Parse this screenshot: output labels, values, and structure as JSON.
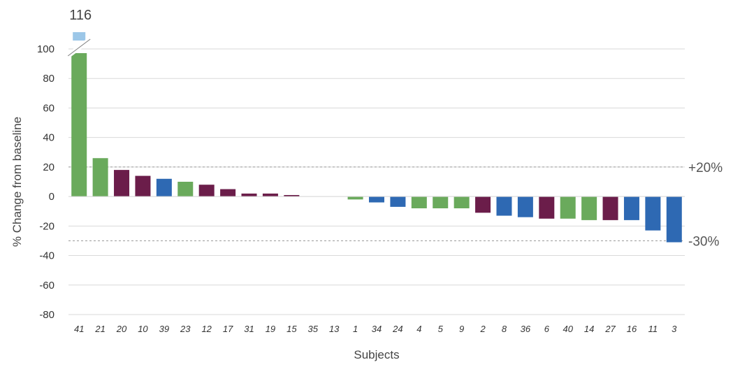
{
  "chart_data": {
    "type": "bar",
    "xlabel": "Subjects",
    "ylabel": "% Change from baseline",
    "ylim": [
      -80,
      100
    ],
    "yticks": [
      100,
      80,
      60,
      40,
      20,
      0,
      -20,
      -40,
      -60,
      -80
    ],
    "grid": true,
    "categories": [
      "41",
      "21",
      "20",
      "10",
      "39",
      "23",
      "12",
      "17",
      "31",
      "19",
      "15",
      "35",
      "13",
      "1",
      "34",
      "24",
      "4",
      "5",
      "9",
      "2",
      "8",
      "36",
      "6",
      "40",
      "14",
      "27",
      "16",
      "11",
      "3"
    ],
    "values": [
      116,
      26,
      18,
      14,
      12,
      10,
      8,
      5,
      2,
      2,
      1,
      0,
      0,
      -2,
      -4,
      -7,
      -8,
      -8,
      -8,
      -11,
      -13,
      -14,
      -15,
      -15,
      -16,
      -16,
      -16,
      -23,
      -31
    ],
    "colors": [
      "#6aaa5c",
      "#6aaa5c",
      "#6b1d4a",
      "#6b1d4a",
      "#2e69b3",
      "#6aaa5c",
      "#6b1d4a",
      "#6b1d4a",
      "#6b1d4a",
      "#6b1d4a",
      "#6b1d4a",
      "#6aaa5c",
      "#6aaa5c",
      "#6aaa5c",
      "#2e69b3",
      "#2e69b3",
      "#6aaa5c",
      "#6aaa5c",
      "#6aaa5c",
      "#6b1d4a",
      "#2e69b3",
      "#2e69b3",
      "#6b1d4a",
      "#6aaa5c",
      "#6aaa5c",
      "#6b1d4a",
      "#2e69b3",
      "#2e69b3",
      "#2e69b3"
    ],
    "reference_lines": [
      {
        "value": 20,
        "label": "+20%"
      },
      {
        "value": -30,
        "label": "-30%"
      }
    ],
    "axis_break": {
      "category": "41",
      "label": "116",
      "cap_color": "#9cc7e8"
    }
  }
}
